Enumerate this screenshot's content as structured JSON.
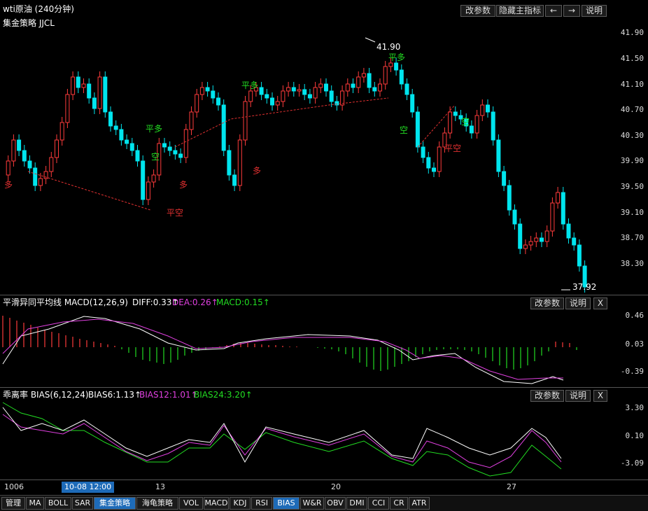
{
  "header": {
    "title": "wti原油 (240分钟)",
    "buttons": [
      "改参数",
      "隐藏主指标",
      "←",
      "→",
      "说明"
    ]
  },
  "main": {
    "indicator_name": "集金策略 JJCL",
    "price_axis": [
      "41.90",
      "41.50",
      "41.10",
      "40.70",
      "40.30",
      "39.90",
      "39.50",
      "39.10",
      "38.70",
      "38.30"
    ],
    "high_label": "41.90",
    "low_label": "37.92",
    "signals": [
      "多",
      "平多",
      "空",
      "平空",
      "多",
      "平多",
      "多",
      "平多",
      "空",
      "空",
      "平空"
    ]
  },
  "macd": {
    "name": "平滑异同平均线 MACD(12,26,9)",
    "diff": "DIFF:0.33↑",
    "dea": "DEA:0.26↑",
    "macd": "MACD:0.15↑",
    "axis": [
      "0.46",
      "0.03",
      "-0.39"
    ],
    "buttons": [
      "改参数",
      "说明",
      "X"
    ]
  },
  "bias": {
    "name": "乖离率 BIAS(6,12,24)",
    "b6": "BIAS6:1.13↑",
    "b12": "BIAS12:1.01↑",
    "b24": "BIAS24:3.20↑",
    "axis": [
      "3.30",
      "0.10",
      "-3.09"
    ],
    "buttons": [
      "改参数",
      "说明",
      "X"
    ]
  },
  "time_axis": {
    "labels": [
      "1006",
      "13",
      "20",
      "27"
    ],
    "cursor": "10-08 12:00"
  },
  "tabs": [
    "管理",
    "MA",
    "BOLL",
    "SAR",
    "集金策略",
    "海龟策略",
    "VOL",
    "MACD",
    "KDJ",
    "RSI",
    "BIAS",
    "W&R",
    "OBV",
    "DMI",
    "CCI",
    "CR",
    "ATR"
  ],
  "colors": {
    "up": "#ff3b3b",
    "down": "#00e5ee",
    "diff": "#ffffff",
    "dea": "#e040e0",
    "macd": "#22dd22",
    "accent": "#1e6bb8"
  }
}
